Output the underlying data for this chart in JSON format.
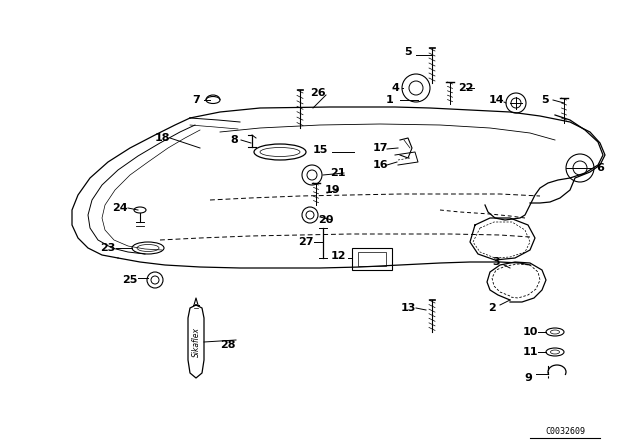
{
  "bg_color": "#ffffff",
  "diagram_color": "#000000",
  "watermark": "C0032609",
  "figsize": [
    6.4,
    4.48
  ],
  "dpi": 100
}
